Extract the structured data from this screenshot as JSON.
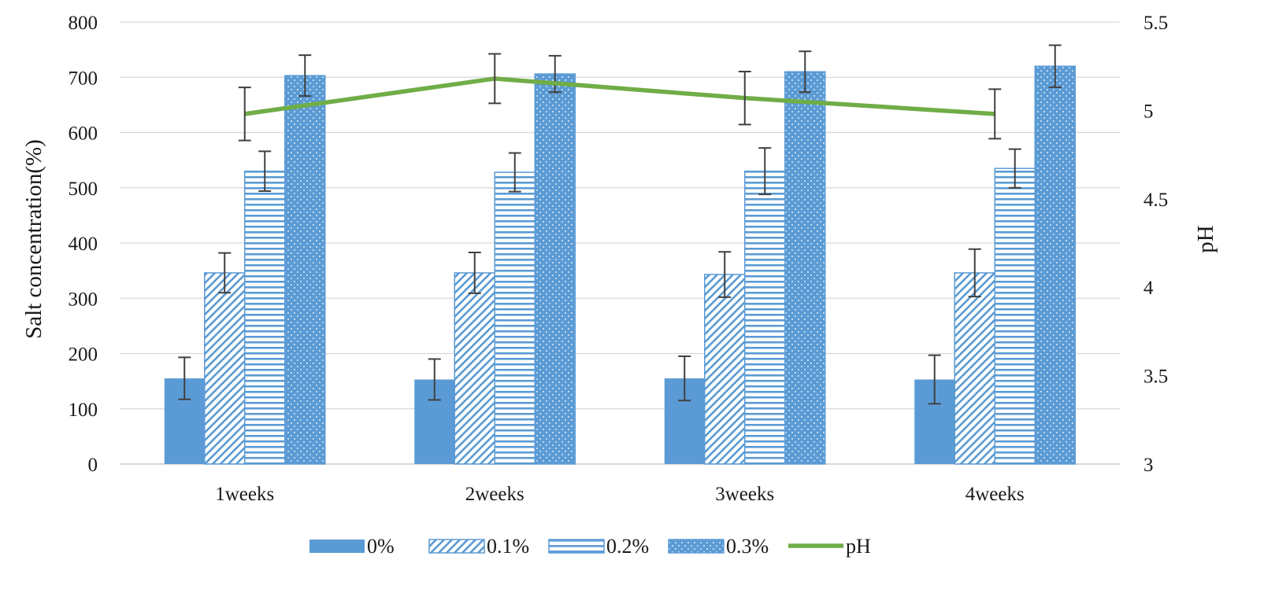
{
  "chart_data": {
    "type": "bar",
    "categories": [
      "1weeks",
      "2weeks",
      "3weeks",
      "4weeks"
    ],
    "series": [
      {
        "name": "0%",
        "pattern": "solid",
        "values": [
          155,
          153,
          155,
          153
        ],
        "errors": [
          38,
          37,
          40,
          44
        ]
      },
      {
        "name": "0.1%",
        "pattern": "diagonal",
        "values": [
          346,
          346,
          343,
          346
        ],
        "errors": [
          36,
          37,
          41,
          43
        ]
      },
      {
        "name": "0.2%",
        "pattern": "horizontal",
        "values": [
          530,
          528,
          530,
          535
        ],
        "errors": [
          36,
          35,
          42,
          35
        ]
      },
      {
        "name": "0.3%",
        "pattern": "dotted",
        "values": [
          703,
          706,
          710,
          720
        ],
        "errors": [
          37,
          33,
          37,
          38
        ]
      }
    ],
    "line_series": {
      "name": "pH",
      "values": [
        4.98,
        5.18,
        5.07,
        4.98
      ],
      "errors": [
        0.15,
        0.14,
        0.15,
        0.14
      ]
    },
    "ylabel": "Salt concentration(%)",
    "y2label": "pH",
    "ylim": [
      0,
      800
    ],
    "yticks": [
      "0",
      "100",
      "200",
      "300",
      "400",
      "500",
      "600",
      "700",
      "800"
    ],
    "y2lim": [
      3,
      5.5
    ],
    "y2ticks": [
      "3",
      "3.5",
      "4",
      "4.5",
      "5",
      "5.5"
    ],
    "grid": true,
    "legend_position": "bottom",
    "colors": {
      "bar": "#5b9bd5",
      "line": "#70ad47",
      "grid": "#d9d9d9",
      "error": "#404040"
    }
  }
}
